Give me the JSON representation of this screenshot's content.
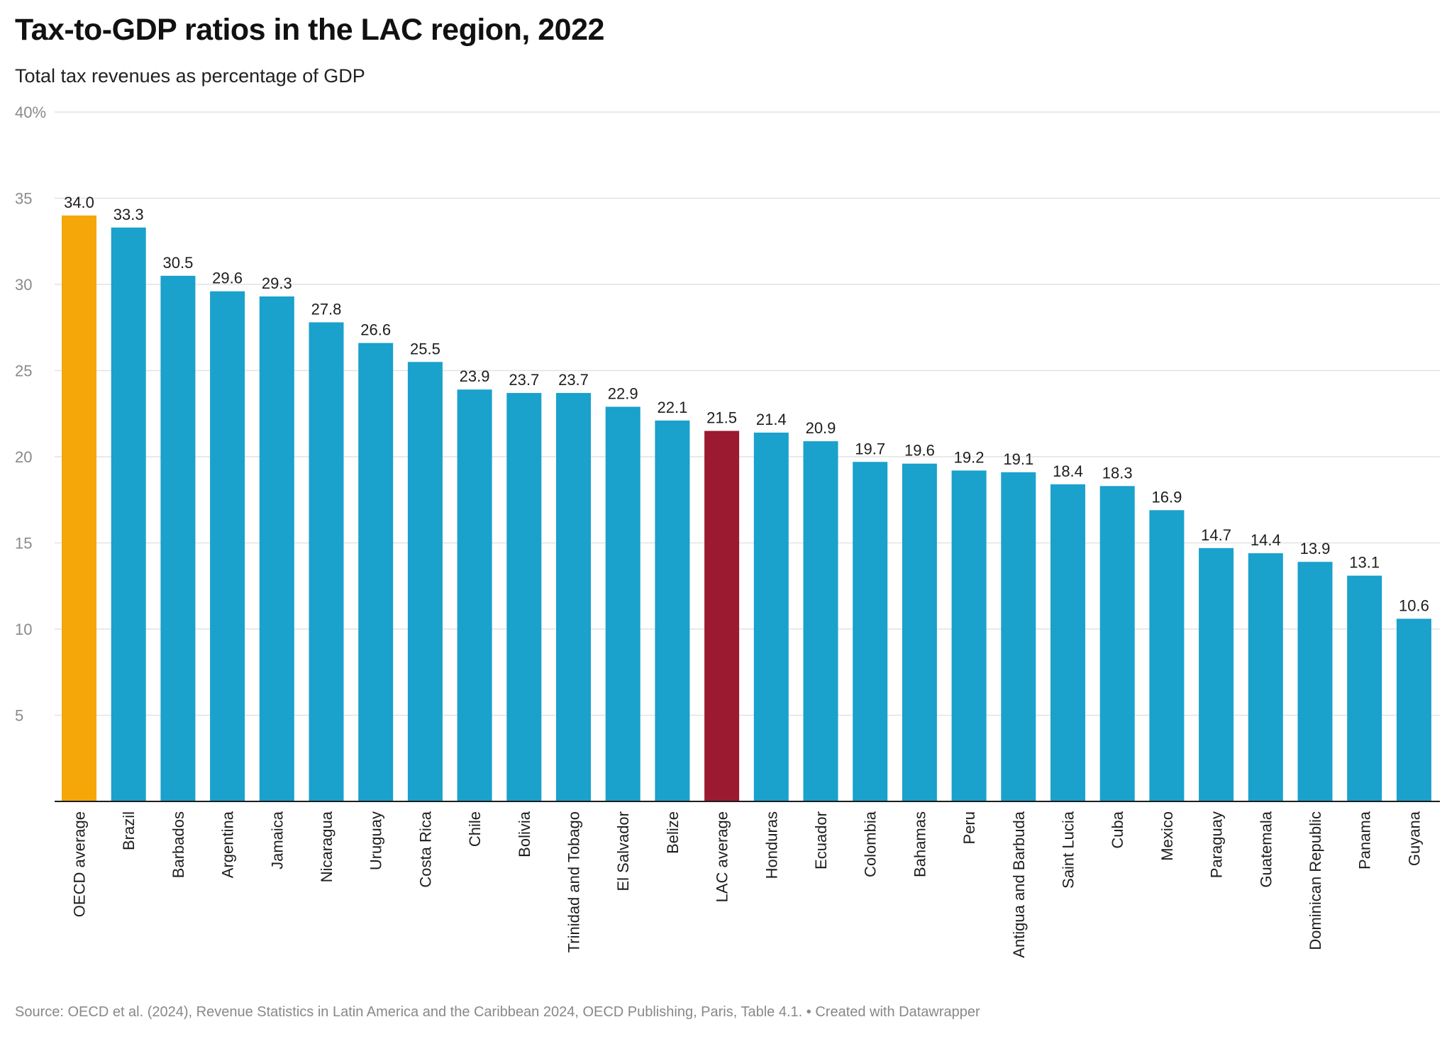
{
  "title": "Tax-to-GDP ratios in the LAC region, 2022",
  "subtitle": "Total tax revenues as percentage of GDP",
  "source": "Source: OECD et al. (2024), Revenue Statistics in Latin America and the Caribbean 2024, OECD Publishing, Paris, Table 4.1. • Created with Datawrapper",
  "colors": {
    "default_bar": "#1aa1cc",
    "oecd_bar": "#f5a70a",
    "lac_bar": "#9b1a30",
    "grid": "#e2e2e2",
    "axis": "#1d1d1d",
    "tick_text": "#8a8a8a",
    "label_text": "#1d1d1d"
  },
  "chart_data": {
    "type": "bar",
    "title": "Tax-to-GDP ratios in the LAC region, 2022",
    "subtitle": "Total tax revenues as percentage of GDP",
    "xlabel": "",
    "ylabel": "",
    "ylim": [
      0,
      40
    ],
    "yticks": [
      5,
      10,
      15,
      20,
      25,
      30,
      35,
      40
    ],
    "ytick_labels": [
      "5",
      "10",
      "15",
      "20",
      "25",
      "30",
      "35",
      "40%"
    ],
    "grid": true,
    "categories": [
      "OECD average",
      "Brazil",
      "Barbados",
      "Argentina",
      "Jamaica",
      "Nicaragua",
      "Uruguay",
      "Costa Rica",
      "Chile",
      "Bolivia",
      "Trinidad and Tobago",
      "El Salvador",
      "Belize",
      "LAC average",
      "Honduras",
      "Ecuador",
      "Colombia",
      "Bahamas",
      "Peru",
      "Antigua and Barbuda",
      "Saint Lucia",
      "Cuba",
      "Mexico",
      "Paraguay",
      "Guatemala",
      "Dominican Republic",
      "Panama",
      "Guyana"
    ],
    "values": [
      34.0,
      33.3,
      30.5,
      29.6,
      29.3,
      27.8,
      26.6,
      25.5,
      23.9,
      23.7,
      23.7,
      22.9,
      22.1,
      21.5,
      21.4,
      20.9,
      19.7,
      19.6,
      19.2,
      19.1,
      18.4,
      18.3,
      16.9,
      14.7,
      14.4,
      13.9,
      13.1,
      10.6
    ],
    "value_labels": [
      "34.0",
      "33.3",
      "30.5",
      "29.6",
      "29.3",
      "27.8",
      "26.6",
      "25.5",
      "23.9",
      "23.7",
      "23.7",
      "22.9",
      "22.1",
      "21.5",
      "21.4",
      "20.9",
      "19.7",
      "19.6",
      "19.2",
      "19.1",
      "18.4",
      "18.3",
      "16.9",
      "14.7",
      "14.4",
      "13.9",
      "13.1",
      "10.6"
    ],
    "highlight": {
      "OECD average": "#f5a70a",
      "LAC average": "#9b1a30"
    }
  }
}
